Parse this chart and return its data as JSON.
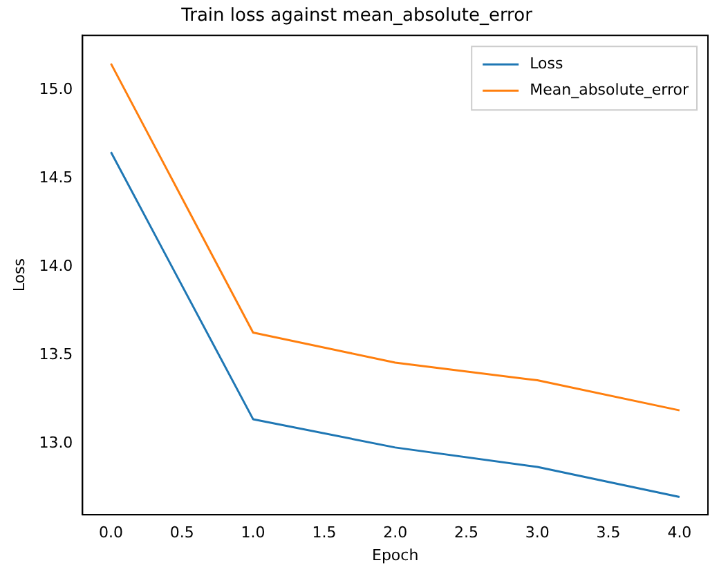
{
  "chart_data": {
    "type": "line",
    "title": "Train loss against mean_absolute_error",
    "xlabel": "Epoch",
    "ylabel": "Loss",
    "x": [
      0,
      1,
      2,
      3,
      4
    ],
    "series": [
      {
        "name": "Loss",
        "color": "#1f77b4",
        "values": [
          14.65,
          13.14,
          12.98,
          12.87,
          12.7
        ]
      },
      {
        "name": "Mean_absolute_error",
        "color": "#ff7f0e",
        "values": [
          15.15,
          13.63,
          13.46,
          13.36,
          13.19
        ]
      }
    ],
    "xlim": [
      -0.2,
      4.2
    ],
    "xticks": [
      {
        "value": 0,
        "label": "0.0"
      },
      {
        "value": 0.5,
        "label": "0.5"
      },
      {
        "value": 1,
        "label": "1.0"
      },
      {
        "value": 1.5,
        "label": "1.5"
      },
      {
        "value": 2,
        "label": "2.0"
      },
      {
        "value": 2.5,
        "label": "2.5"
      },
      {
        "value": 3,
        "label": "3.0"
      },
      {
        "value": 3.5,
        "label": "3.5"
      },
      {
        "value": 4,
        "label": "4.0"
      }
    ],
    "ylim": [
      12.6,
      15.31
    ],
    "yticks": [
      {
        "value": 13,
        "label": "13.0"
      },
      {
        "value": 13.5,
        "label": "13.5"
      },
      {
        "value": 14,
        "label": "14.0"
      },
      {
        "value": 14.5,
        "label": "14.5"
      },
      {
        "value": 15,
        "label": "15.0"
      }
    ],
    "legend": "top right",
    "grid": false,
    "marker": "none",
    "line_style": "solid"
  }
}
